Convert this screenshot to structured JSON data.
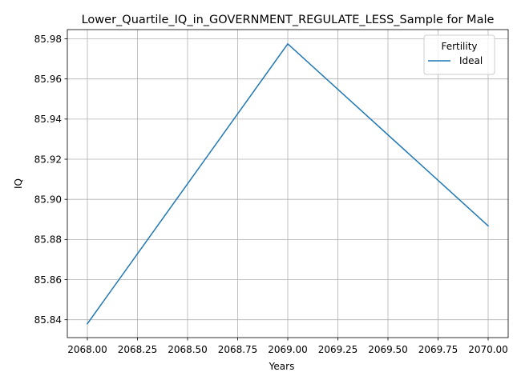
{
  "chart_data": {
    "type": "line",
    "title": "Lower_Quartile_IQ_in_GOVERNMENT_REGULATE_LESS_Sample for Male",
    "xlabel": "Years",
    "ylabel": "IQ",
    "xlim": [
      2067.9,
      2070.1
    ],
    "ylim": [
      85.8311,
      85.9846
    ],
    "xticks": [
      2068.0,
      2068.25,
      2068.5,
      2068.75,
      2069.0,
      2069.25,
      2069.5,
      2069.75,
      2070.0
    ],
    "xtick_labels": [
      "2068.00",
      "2068.25",
      "2068.50",
      "2068.75",
      "2069.00",
      "2069.25",
      "2069.50",
      "2069.75",
      "2070.00"
    ],
    "yticks": [
      85.84,
      85.86,
      85.88,
      85.9,
      85.92,
      85.94,
      85.96,
      85.98
    ],
    "ytick_labels": [
      "85.84",
      "85.86",
      "85.88",
      "85.90",
      "85.92",
      "85.94",
      "85.96",
      "85.98"
    ],
    "grid": true,
    "legend": {
      "title": "Fertility",
      "placement": "top-right"
    },
    "series": [
      {
        "name": "Ideal",
        "color": "#1f77b4",
        "x": [
          2068,
          2069,
          2070
        ],
        "y": [
          85.838,
          85.9775,
          85.8868
        ]
      }
    ]
  }
}
